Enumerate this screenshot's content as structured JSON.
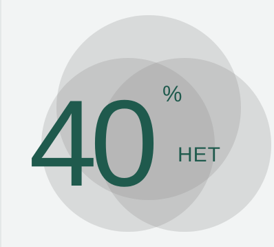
{
  "stat": {
    "value": "40",
    "unit": "%",
    "label": "НЕТ"
  },
  "colors": {
    "text": "#1f5a4d",
    "circle_fill": "#8e8e8e",
    "background": "#f2f4f4"
  }
}
